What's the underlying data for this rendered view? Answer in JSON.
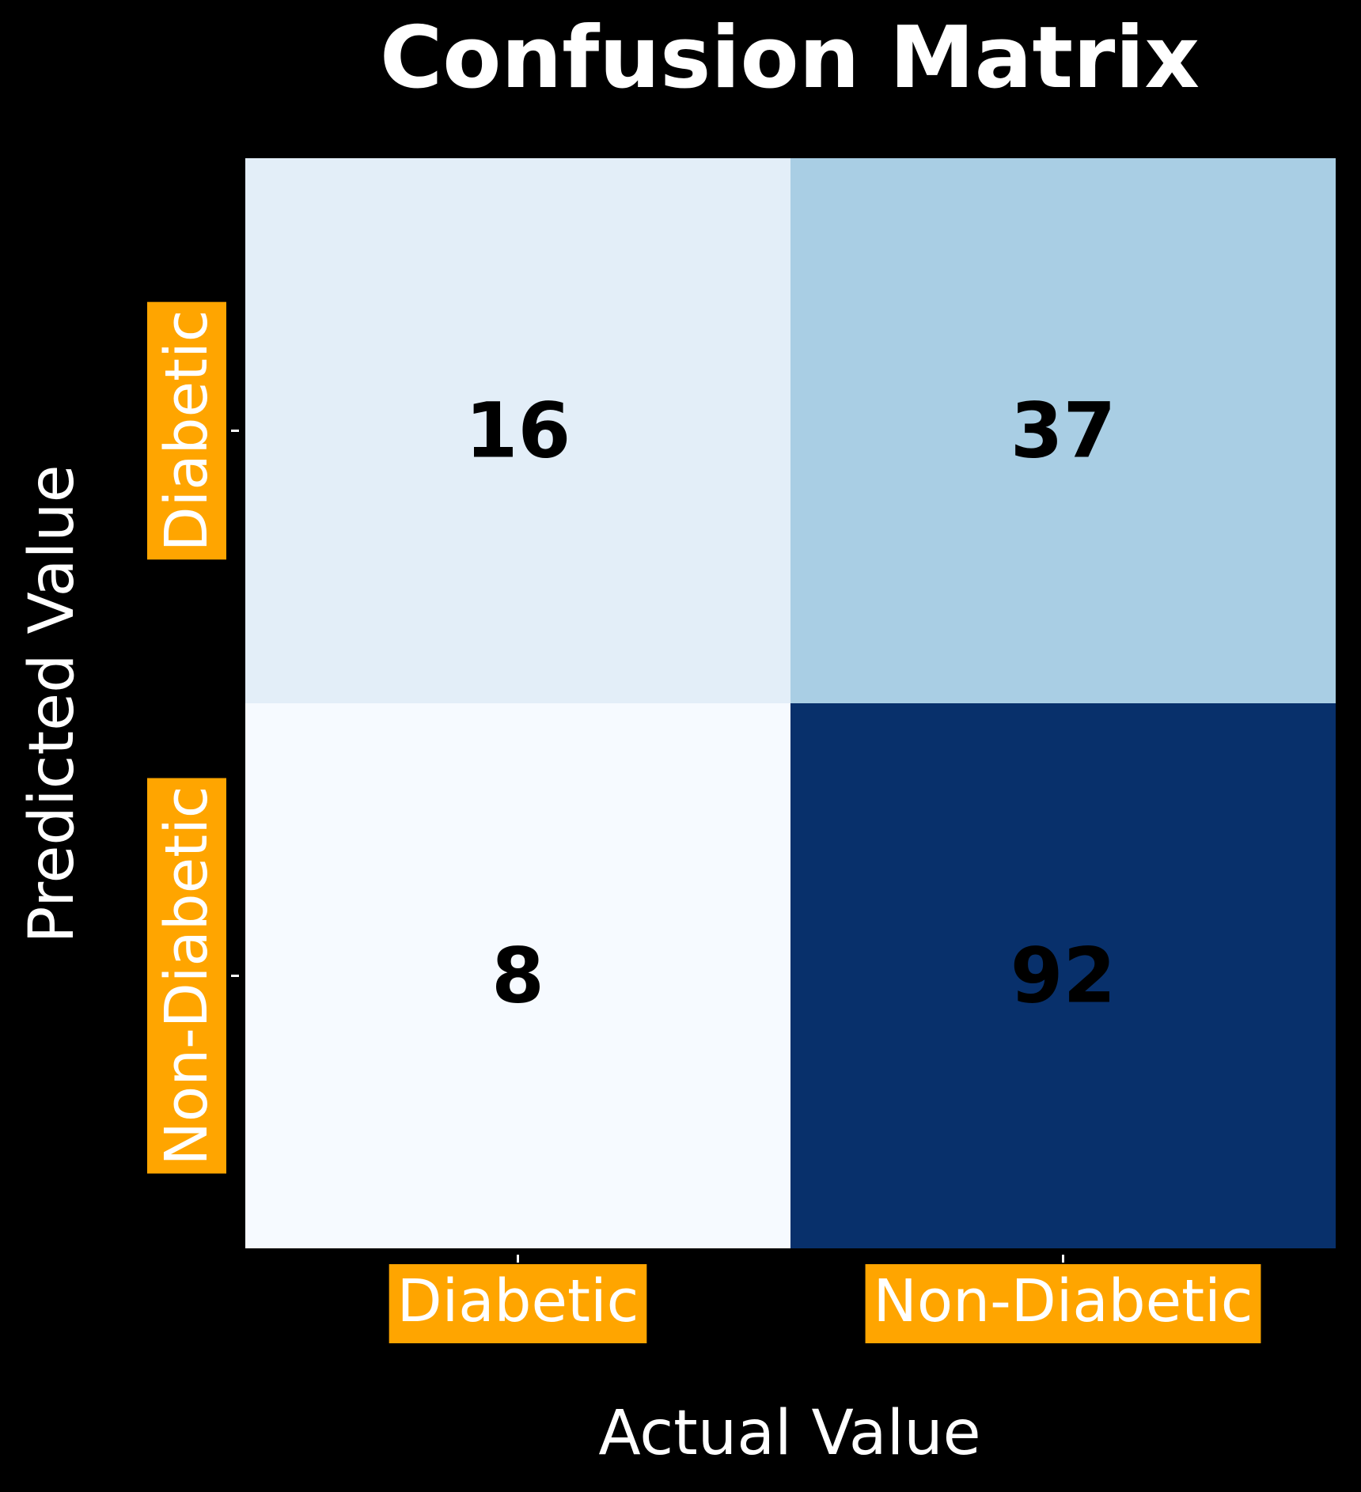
{
  "chart_data": {
    "type": "heatmap",
    "title": "Confusion Matrix",
    "xlabel": "Actual Value",
    "ylabel": "Predicted Value",
    "x_categories": [
      "Diabetic",
      "Non-Diabetic"
    ],
    "y_categories": [
      "Diabetic",
      "Non-Diabetic"
    ],
    "values": [
      [
        16,
        37
      ],
      [
        8,
        92
      ]
    ],
    "colormap": "Blues",
    "value_range": [
      8,
      92
    ],
    "colorbar": false,
    "grid": false
  },
  "colors": {
    "background": "#000000",
    "text": "#ffffff",
    "tick_label_box": "#ffa500",
    "cell_value_text": "#000000",
    "cell_colors": [
      [
        "#e3eef8",
        "#a9cee4"
      ],
      [
        "#f6faff",
        "#08306b"
      ]
    ]
  }
}
